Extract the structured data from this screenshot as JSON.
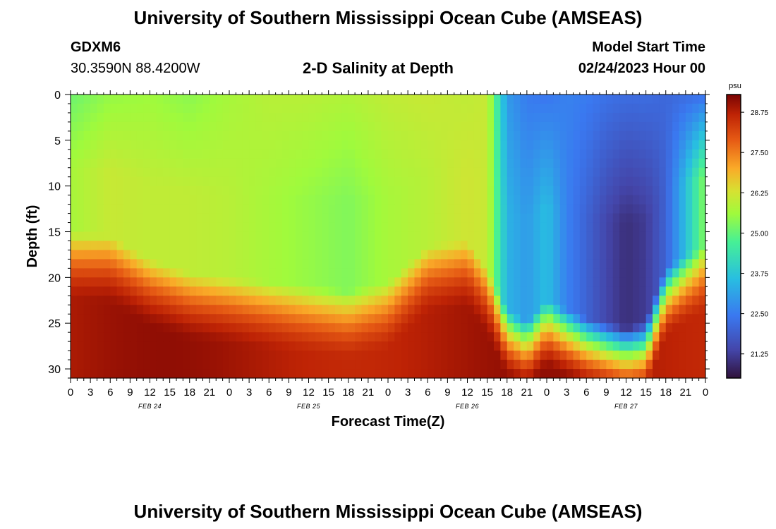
{
  "page": {
    "title": "University of Southern Mississippi Ocean Cube (AMSEAS)",
    "station": "GDXM6",
    "coords": "30.3590N  88.4200W",
    "subtitle": "2-D Salinity at Depth",
    "model_start_label": "Model Start Time",
    "model_start_value": "02/24/2023 Hour 00",
    "bottom_title": "University of Southern Mississippi Ocean Cube (AMSEAS)"
  },
  "chart_data": {
    "type": "heatmap",
    "title": "2-D Salinity at Depth",
    "xlabel": "Forecast Time(Z)",
    "ylabel": "Depth (ft)",
    "x_ticks": [
      "0",
      "3",
      "6",
      "9",
      "12",
      "15",
      "18",
      "21",
      "0",
      "3",
      "6",
      "9",
      "12",
      "15",
      "18",
      "21",
      "0",
      "3",
      "6",
      "9",
      "12",
      "15",
      "18",
      "21",
      "0",
      "3",
      "6",
      "9",
      "12",
      "15",
      "18",
      "21",
      "0"
    ],
    "date_labels": [
      {
        "label": "FEB 24",
        "hour": 12
      },
      {
        "label": "FEB 25",
        "hour": 36
      },
      {
        "label": "FEB 26",
        "hour": 60
      },
      {
        "label": "FEB 27",
        "hour": 84
      }
    ],
    "xlim_hours": [
      0,
      96
    ],
    "ylim_ft": [
      0,
      31
    ],
    "y_ticks": [
      0,
      5,
      10,
      15,
      20,
      25,
      30
    ],
    "colorbar": {
      "unit": "psu",
      "min": 20.5,
      "max": 29.3,
      "ticks": [
        "28.75",
        "27.50",
        "26.25",
        "25.00",
        "23.75",
        "22.50",
        "21.25"
      ]
    },
    "salinity_profile": {
      "hours": [
        0,
        6,
        12,
        18,
        24,
        30,
        36,
        42,
        48,
        54,
        60,
        63,
        66,
        69,
        72,
        75,
        78,
        81,
        84,
        87,
        90,
        93,
        96
      ],
      "surface_psu": [
        25.1,
        25.5,
        25.6,
        25.4,
        25.7,
        25.9,
        25.9,
        25.8,
        26.0,
        26.1,
        26.0,
        26.1,
        23.0,
        22.5,
        22.4,
        22.6,
        22.5,
        22.3,
        22.2,
        22.2,
        22.1,
        22.2,
        22.3
      ],
      "mid_psu": [
        25.7,
        26.1,
        26.0,
        26.0,
        25.9,
        25.7,
        25.5,
        25.3,
        25.7,
        25.9,
        26.2,
        26.1,
        23.4,
        23.0,
        23.6,
        22.6,
        22.0,
        21.4,
        21.0,
        21.2,
        22.0,
        23.6,
        25.4
      ],
      "halocline_top_ft": [
        15.0,
        15.5,
        18.0,
        19.5,
        20.0,
        20.5,
        21.0,
        21.5,
        20.5,
        16.5,
        16.0,
        19.0,
        23.5,
        24.8,
        22.5,
        23.5,
        24.5,
        25.0,
        25.5,
        25.0,
        19.0,
        17.5,
        16.5
      ]
    }
  }
}
